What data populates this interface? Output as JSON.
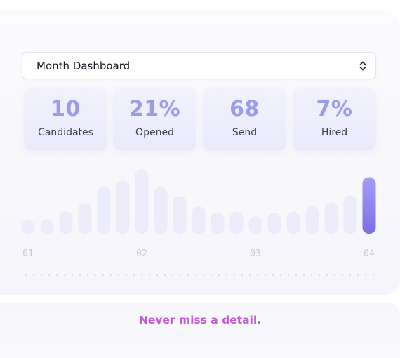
{
  "dashboard_select": {
    "value": "Month Dashboard",
    "icon": "chevron-updown-icon"
  },
  "stats": [
    {
      "value": "10",
      "label": "Candidates"
    },
    {
      "value": "21%",
      "label": "Opened"
    },
    {
      "value": "68",
      "label": "Send"
    },
    {
      "value": "7%",
      "label": "Hired"
    }
  ],
  "chart_data": {
    "type": "bar",
    "x_tick_labels": [
      "01",
      "02",
      "03",
      "04"
    ],
    "values": [
      2,
      2.5,
      3.8,
      5.3,
      8.2,
      9.2,
      11.2,
      8.1,
      6.5,
      4.7,
      3.7,
      3.8,
      3,
      3.6,
      3.8,
      4.7,
      5.4,
      6.6,
      9.8
    ],
    "highlighted_index": 18,
    "colors": {
      "bar": "#ebebf9",
      "highlight_top": "#a69cf8",
      "highlight_bottom": "#7b6ee8"
    }
  },
  "footer": {
    "tagline": "Never miss a detail."
  }
}
